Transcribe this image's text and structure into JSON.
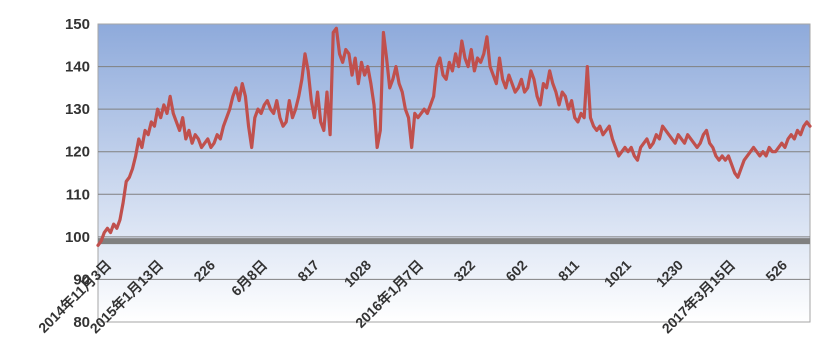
{
  "chart_data": {
    "type": "line",
    "title": "",
    "xlabel": "",
    "ylabel": "",
    "ylim": [
      80,
      150
    ],
    "yticks": [
      80,
      90,
      100,
      110,
      120,
      130,
      140,
      150
    ],
    "xtick_labels": [
      "2014年11月3日",
      "2015年1月13日",
      "226",
      "6月8日",
      "817",
      "1028",
      "2016年1月7日",
      "322",
      "602",
      "811",
      "1021",
      "1230",
      "2017年3月15日",
      "526"
    ],
    "reference_line": 99,
    "grid": true,
    "colors": {
      "line": "#c0504d",
      "reference": "#808080",
      "plot_top": "#8eaadb",
      "plot_bottom": "#ffffff"
    },
    "series": [
      {
        "name": "",
        "values": [
          98,
          99,
          101,
          102,
          101,
          103,
          102,
          104,
          108,
          113,
          114,
          116,
          119,
          123,
          121,
          125,
          124,
          127,
          126,
          130,
          128,
          131,
          129,
          133,
          129,
          127,
          125,
          128,
          123,
          125,
          122,
          124,
          123,
          121,
          122,
          123,
          121,
          122,
          124,
          123,
          126,
          128,
          130,
          133,
          135,
          132,
          136,
          133,
          126,
          121,
          128,
          130,
          129,
          131,
          132,
          130,
          129,
          132,
          128,
          126,
          127,
          132,
          128,
          130,
          133,
          137,
          143,
          139,
          132,
          128,
          134,
          127,
          125,
          134,
          124,
          148,
          149,
          143,
          141,
          144,
          143,
          138,
          142,
          136,
          141,
          138,
          140,
          136,
          131,
          121,
          125,
          148,
          142,
          135,
          137,
          140,
          136,
          134,
          130,
          128,
          121,
          129,
          128,
          129,
          130,
          129,
          131,
          133,
          140,
          142,
          138,
          137,
          141,
          139,
          143,
          140,
          146,
          142,
          140,
          144,
          139,
          142,
          141,
          143,
          147,
          140,
          138,
          136,
          142,
          137,
          135,
          138,
          136,
          134,
          135,
          137,
          134,
          135,
          139,
          137,
          133,
          131,
          136,
          135,
          139,
          136,
          134,
          131,
          134,
          133,
          130,
          132,
          128,
          127,
          129,
          128,
          140,
          128,
          126,
          125,
          126,
          124,
          125,
          126,
          123,
          121,
          119,
          120,
          121,
          120,
          121,
          119,
          118,
          121,
          122,
          123,
          121,
          122,
          124,
          123,
          126,
          125,
          124,
          123,
          122,
          124,
          123,
          122,
          124,
          123,
          122,
          121,
          122,
          124,
          125,
          122,
          121,
          119,
          118,
          119,
          118,
          119,
          117,
          115,
          114,
          116,
          118,
          119,
          120,
          121,
          120,
          119,
          120,
          119,
          121,
          120,
          120,
          121,
          122,
          121,
          123,
          124,
          123,
          125,
          124,
          126,
          127,
          126
        ]
      }
    ]
  }
}
